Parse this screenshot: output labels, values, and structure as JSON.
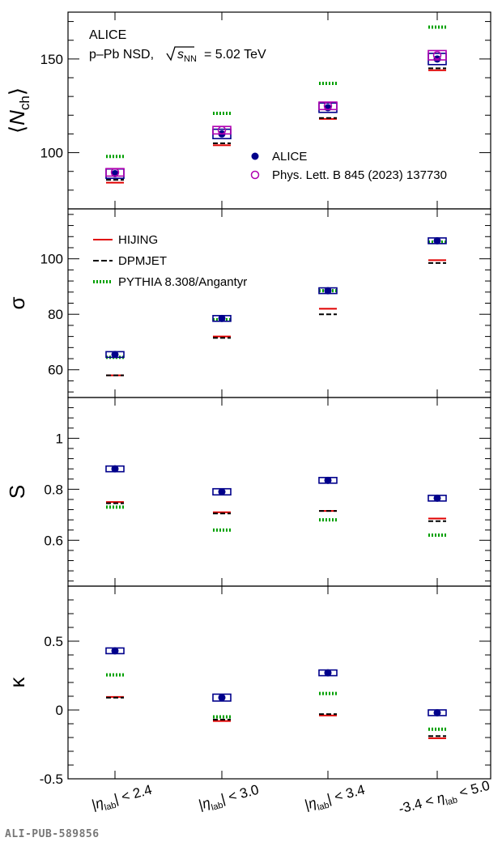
{
  "header": {
    "experiment": "ALICE",
    "system": "p–Pb NSD,",
    "energy_sqrt": "s",
    "energy_sub": "NN",
    "energy_value": "= 5.02 TeV"
  },
  "footer": {
    "id": "ALI-PUB-589856"
  },
  "legend": {
    "alice": "ALICE",
    "plb": "Phys. Lett. B 845 (2023) 137730",
    "hijing": "HIJING",
    "dpmjet": "DPMJET",
    "pythia": "PYTHIA 8.308/Angantyr"
  },
  "colors": {
    "alice": "#00008b",
    "plb": "#b000b0",
    "hijing": "#e00000",
    "dpmjet": "#000000",
    "pythia": "#00a000"
  },
  "x_labels": [
    {
      "pre": "|",
      "eta": "η",
      "sub": "lab",
      "post": "| < 2.4"
    },
    {
      "pre": "|",
      "eta": "η",
      "sub": "lab",
      "post": "| < 3.0"
    },
    {
      "pre": "|",
      "eta": "η",
      "sub": "lab",
      "post": "| < 3.4"
    },
    {
      "pre": "-3.4 <  ",
      "eta": "η",
      "sub": "lab",
      "post": " < 5.0"
    }
  ],
  "chart_data": [
    {
      "type": "scatter",
      "ylabel": {
        "main": "N",
        "sub": "ch"
      },
      "ylim": [
        70,
        175
      ],
      "ticks": [
        100,
        150
      ],
      "categories": [
        "|η_lab| < 2.4",
        "|η_lab| < 3.0",
        "|η_lab| < 3.4",
        "-3.4 < η_lab < 5.0"
      ],
      "series": [
        {
          "name": "ALICE",
          "values": [
            88.8,
            110.0,
            124.0,
            150.0
          ],
          "syst": [
            2.5,
            2.5,
            2.5,
            3.0
          ]
        },
        {
          "name": "Phys. Lett. B 845 (2023) 137730",
          "values": [
            89.5,
            112.0,
            125.0,
            152.0
          ],
          "syst": [
            2.0,
            2.0,
            2.0,
            2.5
          ]
        },
        {
          "name": "HIJING",
          "values": [
            84.0,
            104.0,
            118.0,
            144.0
          ]
        },
        {
          "name": "DPMJET",
          "values": [
            85.5,
            105.0,
            118.5,
            145.0
          ]
        },
        {
          "name": "PYTHIA 8.308/Angantyr",
          "values": [
            98.0,
            121.0,
            137.0,
            167.0
          ]
        }
      ]
    },
    {
      "type": "scatter",
      "ylabel": {
        "main": "σ",
        "sub": ""
      },
      "ylim": [
        50,
        118
      ],
      "ticks": [
        60,
        80,
        100
      ],
      "categories": [
        "|η_lab| < 2.4",
        "|η_lab| < 3.0",
        "|η_lab| < 3.4",
        "-3.4 < η_lab < 5.0"
      ],
      "series": [
        {
          "name": "ALICE",
          "values": [
            65.5,
            78.5,
            88.5,
            106.5
          ],
          "syst": [
            0.8,
            0.8,
            0.8,
            0.8
          ]
        },
        {
          "name": "HIJING",
          "values": [
            58.0,
            72.0,
            82.0,
            99.5
          ]
        },
        {
          "name": "DPMJET",
          "values": [
            58.0,
            71.5,
            80.0,
            98.5
          ]
        },
        {
          "name": "PYTHIA 8.308/Angantyr",
          "values": [
            64.5,
            78.0,
            88.5,
            106.0
          ]
        }
      ]
    },
    {
      "type": "scatter",
      "ylabel": {
        "main": "S",
        "sub": ""
      },
      "ylim": [
        0.42,
        1.16
      ],
      "ticks": [
        0.6,
        0.8,
        1
      ],
      "categories": [
        "|η_lab| < 2.4",
        "|η_lab| < 3.0",
        "|η_lab| < 3.4",
        "-3.4 < η_lab < 5.0"
      ],
      "series": [
        {
          "name": "ALICE",
          "values": [
            0.88,
            0.79,
            0.835,
            0.765
          ],
          "syst": [
            0.01,
            0.012,
            0.01,
            0.01
          ]
        },
        {
          "name": "HIJING",
          "values": [
            0.75,
            0.71,
            0.715,
            0.685
          ]
        },
        {
          "name": "DPMJET",
          "values": [
            0.745,
            0.705,
            0.715,
            0.675
          ]
        },
        {
          "name": "PYTHIA 8.308/Angantyr",
          "values": [
            0.73,
            0.64,
            0.68,
            0.62
          ]
        }
      ]
    },
    {
      "type": "scatter",
      "ylabel": {
        "main": "κ",
        "sub": ""
      },
      "ylim": [
        -0.5,
        0.9
      ],
      "ticks": [
        -0.5,
        0,
        0.5
      ],
      "categories": [
        "|η_lab| < 2.4",
        "|η_lab| < 3.0",
        "|η_lab| < 3.4",
        "-3.4 < η_lab < 5.0"
      ],
      "series": [
        {
          "name": "ALICE",
          "values": [
            0.43,
            0.09,
            0.27,
            -0.02
          ],
          "syst": [
            0.02,
            0.025,
            0.02,
            0.02
          ]
        },
        {
          "name": "HIJING",
          "values": [
            0.095,
            -0.08,
            -0.04,
            -0.205
          ]
        },
        {
          "name": "DPMJET",
          "values": [
            0.09,
            -0.07,
            -0.03,
            -0.19
          ]
        },
        {
          "name": "PYTHIA 8.308/Angantyr",
          "values": [
            0.255,
            -0.05,
            0.12,
            -0.14
          ]
        }
      ]
    }
  ]
}
